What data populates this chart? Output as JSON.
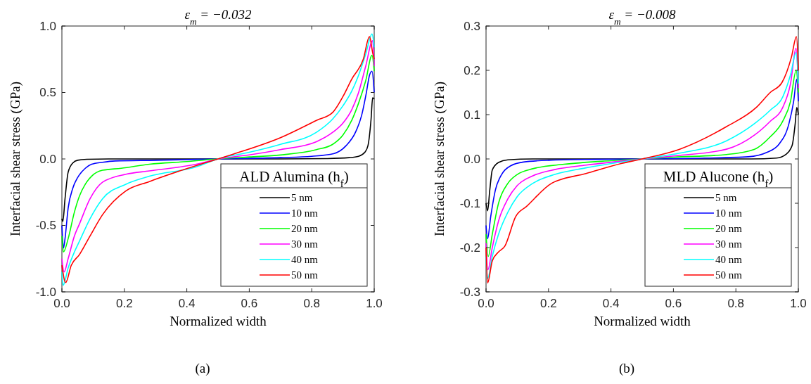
{
  "chart_data": [
    {
      "type": "line",
      "title": "ε$_{m}$ = −0.032",
      "xlabel": "Normalized width",
      "ylabel": "Interfacial shear stress (GPa)",
      "legend_title": "ALD Alumina (h$_{f}$)",
      "legend": "bottom right",
      "grid": false,
      "line_style": "solid",
      "annotations": [
        "(a)"
      ],
      "xlim": [
        0,
        1
      ],
      "xticks": [
        {
          "value": 0,
          "label": "0.0"
        },
        {
          "value": 0.2,
          "label": "0.2"
        },
        {
          "value": 0.4,
          "label": "0.4"
        },
        {
          "value": 0.6,
          "label": "0.6"
        },
        {
          "value": 0.8,
          "label": "0.8"
        },
        {
          "value": 1,
          "label": "1.0"
        }
      ],
      "ylim": [
        -1,
        1
      ],
      "yticks": [
        {
          "value": -1,
          "label": "-1.0"
        },
        {
          "value": -0.5,
          "label": "-0.5"
        },
        {
          "value": 0,
          "label": "0.0"
        },
        {
          "value": 0.5,
          "label": "0.5"
        },
        {
          "value": 1,
          "label": "1.0"
        }
      ],
      "series": [
        {
          "name": "5 nm",
          "color": "#000000",
          "x": [
            0,
            0.003,
            0.01,
            0.02,
            0.035,
            0.05,
            0.08,
            0.15,
            0.3,
            0.5,
            0.7,
            0.85,
            0.92,
            0.95,
            0.97,
            0.98,
            0.99,
            0.995,
            1.0
          ],
          "values": [
            -0.45,
            -0.47,
            -0.3,
            -0.1,
            -0.03,
            -0.01,
            -0.003,
            0,
            0,
            0,
            0,
            0.003,
            0.01,
            0.02,
            0.05,
            0.1,
            0.3,
            0.46,
            0.45
          ]
        },
        {
          "name": "10 nm",
          "color": "#0000ff",
          "x": [
            0,
            0.005,
            0.01,
            0.02,
            0.035,
            0.056,
            0.075,
            0.095,
            0.13,
            0.17,
            0.3,
            0.5,
            0.7,
            0.8,
            0.87,
            0.91,
            0.94,
            0.96,
            0.975,
            0.985,
            0.993,
            1.0
          ],
          "values": [
            -0.5,
            -0.67,
            -0.6,
            -0.37,
            -0.22,
            -0.12,
            -0.07,
            -0.04,
            -0.025,
            -0.015,
            -0.01,
            0,
            0.01,
            0.02,
            0.04,
            0.1,
            0.2,
            0.33,
            0.5,
            0.63,
            0.66,
            0.5
          ]
        },
        {
          "name": "20 nm",
          "color": "#00ff00",
          "x": [
            0,
            0.005,
            0.02,
            0.04,
            0.056,
            0.075,
            0.095,
            0.13,
            0.19,
            0.28,
            0.4,
            0.5,
            0.6,
            0.7,
            0.815,
            0.867,
            0.9,
            0.928,
            0.95,
            0.973,
            0.993,
            1.0
          ],
          "values": [
            -0.58,
            -0.7,
            -0.6,
            -0.4,
            -0.28,
            -0.19,
            -0.13,
            -0.085,
            -0.07,
            -0.04,
            -0.02,
            0,
            0.015,
            0.03,
            0.07,
            0.11,
            0.18,
            0.29,
            0.42,
            0.59,
            0.78,
            0.66
          ]
        },
        {
          "name": "30 nm",
          "color": "#ff00ff",
          "x": [
            0,
            0.007,
            0.02,
            0.04,
            0.056,
            0.09,
            0.13,
            0.205,
            0.28,
            0.43,
            0.5,
            0.6,
            0.7,
            0.815,
            0.867,
            0.9,
            0.928,
            0.95,
            0.973,
            0.995,
            1.0
          ],
          "values": [
            -0.75,
            -0.85,
            -0.75,
            -0.58,
            -0.49,
            -0.3,
            -0.175,
            -0.115,
            -0.09,
            -0.04,
            0,
            0.03,
            0.07,
            0.13,
            0.2,
            0.27,
            0.37,
            0.5,
            0.7,
            0.89,
            0.7
          ]
        },
        {
          "name": "40 nm",
          "color": "#00ffff",
          "x": [
            0,
            0.004,
            0.02,
            0.04,
            0.056,
            0.09,
            0.13,
            0.205,
            0.28,
            0.43,
            0.5,
            0.6,
            0.7,
            0.815,
            0.867,
            0.9,
            0.928,
            0.95,
            0.973,
            0.993,
            1.0
          ],
          "values": [
            -0.85,
            -0.95,
            -0.82,
            -0.7,
            -0.62,
            -0.45,
            -0.3,
            -0.19,
            -0.13,
            -0.06,
            0,
            0.05,
            0.11,
            0.2,
            0.3,
            0.4,
            0.51,
            0.63,
            0.79,
            0.94,
            0.84
          ]
        },
        {
          "name": "50 nm",
          "color": "#ff0000",
          "x": [
            0,
            0.012,
            0.03,
            0.056,
            0.09,
            0.13,
            0.205,
            0.28,
            0.43,
            0.5,
            0.55,
            0.7,
            0.815,
            0.867,
            0.9,
            0.928,
            0.965,
            0.985,
            0.995,
            1.0
          ],
          "values": [
            -0.8,
            -0.93,
            -0.8,
            -0.72,
            -0.58,
            -0.42,
            -0.24,
            -0.17,
            -0.05,
            0,
            0.037,
            0.16,
            0.29,
            0.35,
            0.47,
            0.6,
            0.75,
            0.92,
            0.8,
            0.75
          ]
        }
      ]
    },
    {
      "type": "line",
      "title": "ε$_{m}$ = −0.008",
      "xlabel": "Normalized width",
      "ylabel": "Interfacial shear stress (GPa)",
      "legend_title": "MLD Alucone (h$_{f}$)",
      "legend": "bottom right",
      "grid": false,
      "line_style": "solid",
      "annotations": [
        "(b)"
      ],
      "xlim": [
        0,
        1
      ],
      "xticks": [
        {
          "value": 0,
          "label": "0.0"
        },
        {
          "value": 0.2,
          "label": "0.2"
        },
        {
          "value": 0.4,
          "label": "0.4"
        },
        {
          "value": 0.6,
          "label": "0.6"
        },
        {
          "value": 0.8,
          "label": "0.8"
        },
        {
          "value": 1,
          "label": "1.0"
        }
      ],
      "ylim": [
        -0.3,
        0.3
      ],
      "yticks": [
        {
          "value": -0.3,
          "label": "-0.3"
        },
        {
          "value": -0.2,
          "label": "-0.2"
        },
        {
          "value": -0.1,
          "label": "-0.1"
        },
        {
          "value": 0,
          "label": "0.0"
        },
        {
          "value": 0.1,
          "label": "0.1"
        },
        {
          "value": 0.2,
          "label": "0.2"
        },
        {
          "value": 0.3,
          "label": "0.3"
        }
      ],
      "series": [
        {
          "name": "5 nm",
          "color": "#000000",
          "x": [
            0,
            0.005,
            0.012,
            0.02,
            0.04,
            0.07,
            0.15,
            0.5,
            0.85,
            0.93,
            0.96,
            0.98,
            0.99,
            0.995,
            1.0
          ],
          "values": [
            -0.1,
            -0.117,
            -0.07,
            -0.025,
            -0.008,
            -0.002,
            0,
            0,
            0,
            0.002,
            0.01,
            0.03,
            0.08,
            0.116,
            0.1
          ]
        },
        {
          "name": "10 nm",
          "color": "#0000ff",
          "x": [
            0,
            0.005,
            0.015,
            0.03,
            0.05,
            0.08,
            0.12,
            0.2,
            0.35,
            0.5,
            0.7,
            0.84,
            0.9,
            0.94,
            0.97,
            0.985,
            0.995,
            1.0
          ],
          "values": [
            -0.15,
            -0.18,
            -0.13,
            -0.07,
            -0.035,
            -0.015,
            -0.007,
            -0.003,
            -0.001,
            0,
            0.002,
            0.005,
            0.015,
            0.035,
            0.08,
            0.13,
            0.18,
            0.13
          ]
        },
        {
          "name": "20 nm",
          "color": "#00ff00",
          "x": [
            0,
            0.007,
            0.02,
            0.04,
            0.07,
            0.1,
            0.15,
            0.25,
            0.4,
            0.5,
            0.6,
            0.77,
            0.86,
            0.91,
            0.95,
            0.975,
            0.993,
            1.0
          ],
          "values": [
            -0.17,
            -0.22,
            -0.17,
            -0.1,
            -0.055,
            -0.035,
            -0.022,
            -0.012,
            -0.004,
            0,
            0.004,
            0.01,
            0.022,
            0.05,
            0.085,
            0.13,
            0.2,
            0.15
          ]
        },
        {
          "name": "30 nm",
          "color": "#ff00ff",
          "x": [
            0,
            0.006,
            0.02,
            0.04,
            0.07,
            0.1,
            0.15,
            0.22,
            0.32,
            0.5,
            0.62,
            0.77,
            0.86,
            0.91,
            0.95,
            0.975,
            0.993,
            1.0
          ],
          "values": [
            -0.19,
            -0.25,
            -0.2,
            -0.14,
            -0.09,
            -0.06,
            -0.038,
            -0.024,
            -0.014,
            0,
            0.008,
            0.022,
            0.054,
            0.085,
            0.116,
            0.17,
            0.25,
            0.16
          ]
        },
        {
          "name": "40 nm",
          "color": "#00ffff",
          "x": [
            0,
            0.005,
            0.02,
            0.04,
            0.07,
            0.1,
            0.15,
            0.22,
            0.32,
            0.5,
            0.62,
            0.77,
            0.86,
            0.91,
            0.95,
            0.975,
            0.993,
            1.0
          ],
          "values": [
            -0.22,
            -0.27,
            -0.22,
            -0.17,
            -0.12,
            -0.085,
            -0.055,
            -0.035,
            -0.02,
            0,
            0.013,
            0.041,
            0.08,
            0.11,
            0.14,
            0.19,
            0.24,
            0.17
          ]
        },
        {
          "name": "50 nm",
          "color": "#ff0000",
          "x": [
            0,
            0.005,
            0.02,
            0.04,
            0.06,
            0.095,
            0.13,
            0.21,
            0.32,
            0.435,
            0.5,
            0.62,
            0.77,
            0.865,
            0.91,
            0.948,
            0.978,
            0.994,
            1.0
          ],
          "values": [
            -0.2,
            -0.28,
            -0.23,
            -0.21,
            -0.197,
            -0.13,
            -0.107,
            -0.055,
            -0.033,
            -0.01,
            0,
            0.022,
            0.073,
            0.116,
            0.15,
            0.173,
            0.23,
            0.276,
            0.2
          ]
        }
      ]
    }
  ]
}
